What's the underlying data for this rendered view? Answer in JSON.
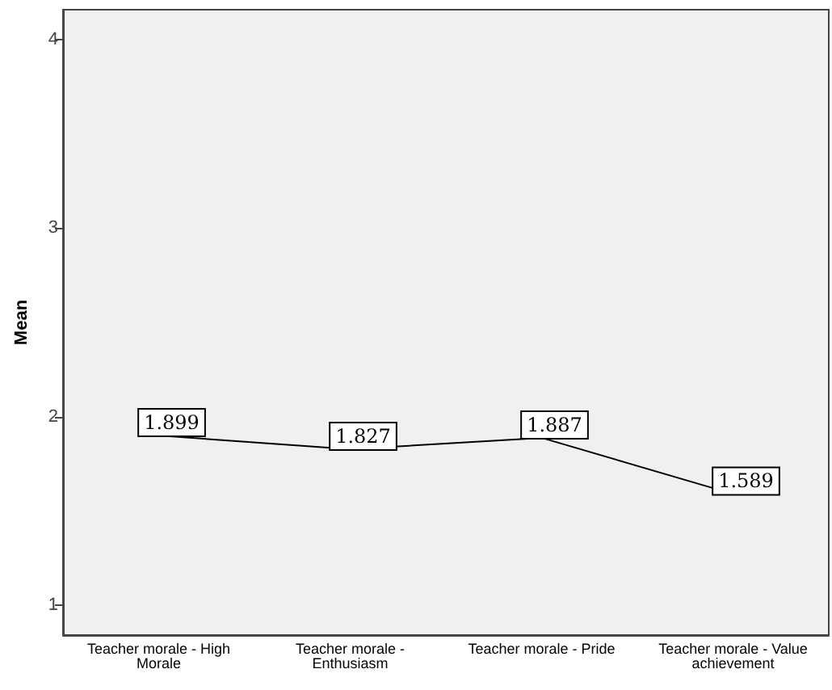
{
  "chart_data": {
    "type": "line",
    "ylabel": "Mean",
    "categories": [
      "Teacher morale - High Morale",
      "Teacher morale - Enthusiasm",
      "Teacher morale - Pride",
      "Teacher morale - Value achievement"
    ],
    "values": [
      1.899,
      1.827,
      1.887,
      1.589
    ],
    "color": "#000000",
    "ylim": [
      0.84,
      4.16
    ],
    "yticks": [
      1,
      2,
      3,
      4
    ],
    "grid": false,
    "marker": "none",
    "line_style": "solid",
    "data_labels": true
  }
}
